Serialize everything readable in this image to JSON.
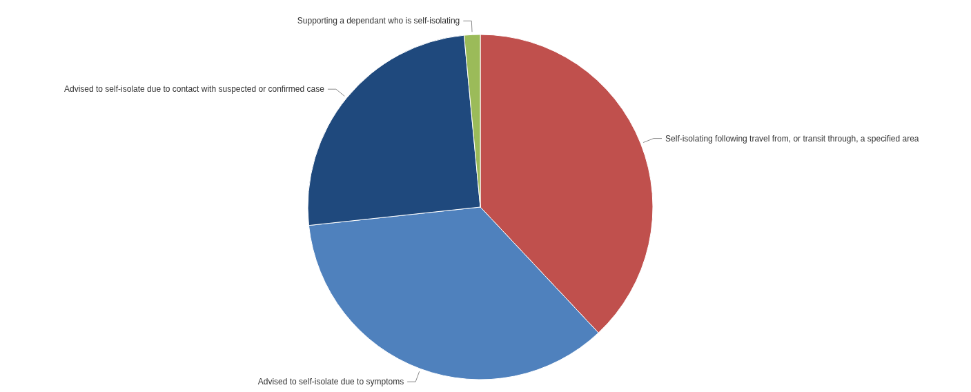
{
  "chart_data": {
    "type": "pie",
    "categories": [
      "Self-isolating following travel from, or transit through, a specified area",
      "Advised to self-isolate due to symptoms",
      "Advised to self-isolate due to contact with suspected or confirmed case",
      "Supporting a dependant who is self-isolating"
    ],
    "values": [
      38,
      35.3,
      25.2,
      1.5
    ],
    "colors": [
      "#c0504d",
      "#4f81bd",
      "#1f497d",
      "#9bbb59"
    ],
    "legend": false
  }
}
